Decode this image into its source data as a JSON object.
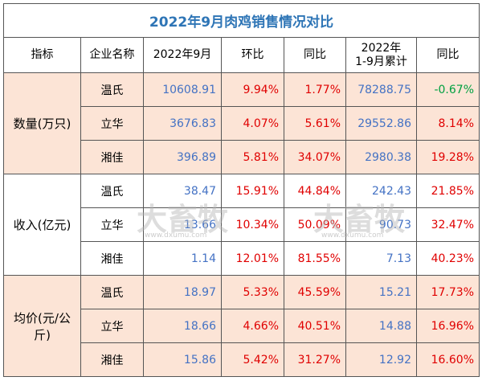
{
  "title": "2022年9月肉鸡销售情况对比",
  "header": [
    "指标",
    "企业名称",
    "2022年9月",
    "环比",
    "同比",
    "2022年\n1-9月累计",
    "同比"
  ],
  "groups": [
    {
      "label": "数量(万只)",
      "rows": [
        [
          "温氏",
          "10608.91",
          "9.94%",
          "1.77%",
          "78288.75",
          "-0.67%"
        ],
        [
          "立华",
          "3676.83",
          "4.07%",
          "5.61%",
          "29552.86",
          "8.14%"
        ],
        [
          "湘佳",
          "396.89",
          "5.81%",
          "34.07%",
          "2980.38",
          "19.28%"
        ]
      ]
    },
    {
      "label": "收入(亿元)",
      "rows": [
        [
          "温氏",
          "38.47",
          "15.91%",
          "44.84%",
          "242.43",
          "21.85%"
        ],
        [
          "立华",
          "13.66",
          "10.34%",
          "50.09%",
          "90.73",
          "32.47%"
        ],
        [
          "湘佳",
          "1.14",
          "12.01%",
          "81.55%",
          "7.13",
          "40.23%"
        ]
      ]
    },
    {
      "label": "均价(元/公斤)",
      "rows": [
        [
          "温氏",
          "18.97",
          "5.33%",
          "45.59%",
          "15.21",
          "17.73%"
        ],
        [
          "立华",
          "18.66",
          "4.66%",
          "40.51%",
          "14.88",
          "16.96%"
        ],
        [
          "湘佳",
          "15.86",
          "5.42%",
          "31.27%",
          "12.92",
          "16.60%"
        ]
      ]
    }
  ],
  "watermark": "大畜牧",
  "watermark_url": "www.dxumu.com"
}
